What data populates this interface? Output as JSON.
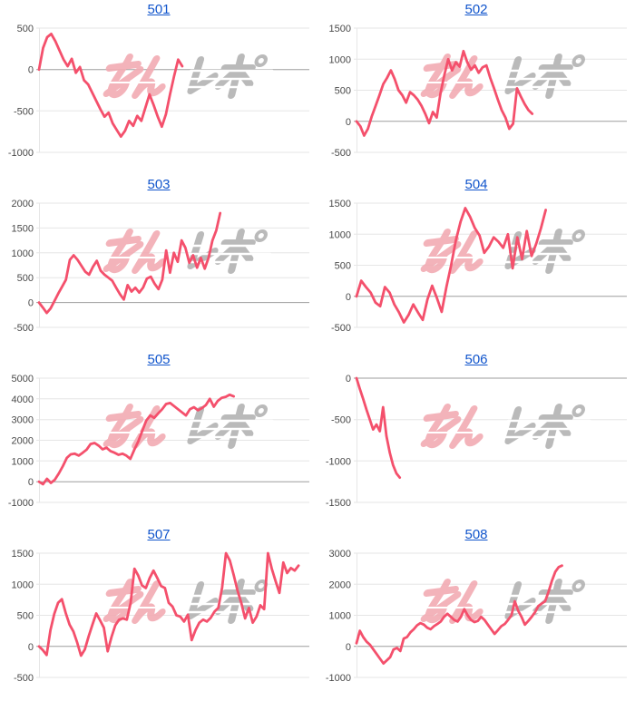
{
  "style": {
    "line_color": "#f4506c",
    "grid_color": "#e6e6e6",
    "zero_line_color": "#9e9e9e",
    "tick_color": "#494949",
    "link_color": "#1155cc",
    "watermark_pink": "#f2abb3",
    "watermark_gray": "#b3b3b3"
  },
  "watermark_text": "みんレポ",
  "chart_data": [
    {
      "type": "line",
      "title": "501",
      "yticks": [
        500,
        0,
        -500,
        -1000
      ],
      "ylim": [
        -1000,
        500
      ],
      "x_fraction": 0.53,
      "legend": "none",
      "grid": true,
      "values": [
        0,
        260,
        390,
        430,
        340,
        230,
        120,
        40,
        130,
        -40,
        30,
        -130,
        -180,
        -280,
        -380,
        -480,
        -570,
        -520,
        -650,
        -730,
        -810,
        -740,
        -620,
        -680,
        -560,
        -620,
        -460,
        -300,
        -430,
        -570,
        -690,
        -540,
        -300,
        -80,
        120,
        40
      ]
    },
    {
      "type": "line",
      "title": "502",
      "yticks": [
        1500,
        1000,
        500,
        0,
        -500
      ],
      "ylim": [
        -500,
        1500
      ],
      "x_fraction": 0.65,
      "legend": "none",
      "grid": true,
      "values": [
        0,
        -80,
        -230,
        -120,
        80,
        250,
        420,
        600,
        700,
        820,
        680,
        500,
        420,
        300,
        470,
        420,
        350,
        250,
        120,
        -30,
        150,
        60,
        450,
        750,
        1000,
        820,
        950,
        880,
        1130,
        950,
        830,
        900,
        780,
        870,
        900,
        700,
        530,
        350,
        180,
        60,
        -120,
        -40,
        530,
        400,
        280,
        180,
        120
      ]
    },
    {
      "type": "line",
      "title": "503",
      "yticks": [
        2000,
        1500,
        1000,
        500,
        0,
        -500
      ],
      "ylim": [
        -500,
        2000
      ],
      "x_fraction": 0.67,
      "legend": "none",
      "grid": true,
      "values": [
        0,
        -100,
        -210,
        -120,
        30,
        180,
        320,
        460,
        860,
        950,
        860,
        740,
        620,
        560,
        720,
        840,
        640,
        560,
        500,
        440,
        300,
        170,
        60,
        350,
        220,
        300,
        200,
        300,
        480,
        520,
        380,
        270,
        460,
        1050,
        600,
        1000,
        820,
        1250,
        1100,
        800,
        950,
        700,
        900,
        680,
        900,
        1250,
        1450,
        1800
      ]
    },
    {
      "type": "line",
      "title": "504",
      "yticks": [
        1500,
        1000,
        500,
        0,
        -500
      ],
      "ylim": [
        -500,
        1500
      ],
      "x_fraction": 0.7,
      "legend": "none",
      "grid": true,
      "values": [
        0,
        250,
        150,
        60,
        -100,
        -160,
        150,
        60,
        -130,
        -260,
        -420,
        -300,
        -130,
        -260,
        -380,
        -50,
        170,
        -30,
        -250,
        150,
        500,
        900,
        1200,
        1420,
        1280,
        1100,
        980,
        700,
        800,
        950,
        880,
        780,
        1000,
        450,
        950,
        600,
        1050,
        650,
        850,
        1100,
        1390
      ]
    },
    {
      "type": "line",
      "title": "505",
      "yticks": [
        5000,
        4000,
        3000,
        2000,
        1000,
        0,
        -1000
      ],
      "ylim": [
        -1000,
        5000
      ],
      "x_fraction": 0.72,
      "legend": "none",
      "grid": true,
      "values": [
        0,
        -120,
        140,
        -60,
        100,
        400,
        750,
        1150,
        1320,
        1350,
        1260,
        1400,
        1550,
        1820,
        1870,
        1740,
        1560,
        1640,
        1480,
        1400,
        1300,
        1350,
        1260,
        1100,
        1550,
        1950,
        2450,
        2950,
        3200,
        3080,
        3300,
        3500,
        3750,
        3800,
        3650,
        3500,
        3350,
        3200,
        3500,
        3600,
        3450,
        3550,
        3700,
        4000,
        3620,
        3900,
        4050,
        4100,
        4200,
        4120
      ]
    },
    {
      "type": "line",
      "title": "506",
      "yticks": [
        0,
        -500,
        -1000,
        -1500
      ],
      "ylim": [
        -1500,
        0
      ],
      "x_fraction": 0.16,
      "legend": "none",
      "grid": true,
      "values": [
        0,
        -130,
        -250,
        -380,
        -500,
        -620,
        -560,
        -640,
        -350,
        -700,
        -900,
        -1050,
        -1150,
        -1200
      ]
    },
    {
      "type": "line",
      "title": "507",
      "yticks": [
        1500,
        1000,
        500,
        0,
        -500
      ],
      "ylim": [
        -500,
        1500
      ],
      "x_fraction": 0.96,
      "legend": "none",
      "grid": true,
      "values": [
        0,
        -60,
        -140,
        260,
        520,
        700,
        760,
        540,
        350,
        240,
        60,
        -150,
        -50,
        160,
        350,
        530,
        420,
        300,
        -80,
        150,
        340,
        430,
        450,
        430,
        700,
        1250,
        1140,
        980,
        940,
        1100,
        1220,
        1100,
        970,
        940,
        700,
        640,
        500,
        480,
        400,
        510,
        100,
        260,
        380,
        430,
        400,
        460,
        560,
        620,
        950,
        1500,
        1380,
        1150,
        900,
        700,
        450,
        620,
        380,
        480,
        660,
        600,
        1500,
        1250,
        1050,
        860,
        1350,
        1180,
        1260,
        1220,
        1300
      ]
    },
    {
      "type": "line",
      "title": "508",
      "yticks": [
        3000,
        2000,
        1000,
        0,
        -1000
      ],
      "ylim": [
        -1000,
        3000
      ],
      "x_fraction": 0.76,
      "legend": "none",
      "grid": true,
      "values": [
        100,
        500,
        300,
        150,
        50,
        -100,
        -250,
        -400,
        -550,
        -450,
        -350,
        -100,
        -50,
        -150,
        250,
        300,
        450,
        550,
        680,
        750,
        700,
        600,
        550,
        650,
        720,
        800,
        950,
        1050,
        950,
        850,
        800,
        950,
        1200,
        1000,
        850,
        780,
        820,
        950,
        850,
        700,
        550,
        400,
        520,
        650,
        720,
        850,
        1000,
        1450,
        1150,
        950,
        700,
        820,
        950,
        1100,
        1300,
        1380,
        1450,
        1750,
        2100,
        2400,
        2550,
        2600
      ]
    }
  ]
}
